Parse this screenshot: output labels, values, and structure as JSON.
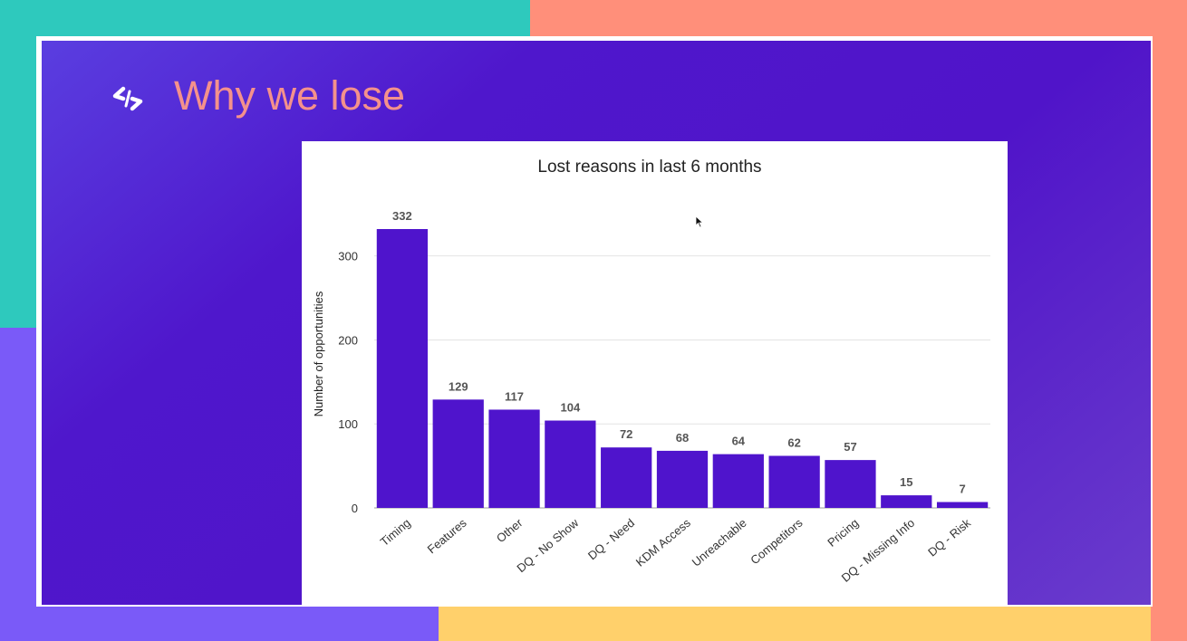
{
  "slide": {
    "title": "Why we lose",
    "logo_icon": "chevrons-logo-icon"
  },
  "colors": {
    "bar": "#4f14cc",
    "title": "#f4918c",
    "grid": "#e4e4e4"
  },
  "chart_data": {
    "type": "bar",
    "title": "Lost reasons in last 6 months",
    "xlabel": "",
    "ylabel": "Number of opportunities",
    "categories": [
      "Timing",
      "Features",
      "Other",
      "DQ - No Show",
      "DQ - Need",
      "KDM Access",
      "Unreachable",
      "Competitors",
      "Pricing",
      "DQ - Missing Info",
      "DQ - Risk"
    ],
    "values": [
      332,
      129,
      117,
      104,
      72,
      68,
      64,
      62,
      57,
      15,
      7
    ],
    "yticks": [
      0,
      100,
      200,
      300
    ],
    "ylim": [
      0,
      332
    ],
    "grid": true,
    "data_labels": true,
    "legend": "none"
  }
}
